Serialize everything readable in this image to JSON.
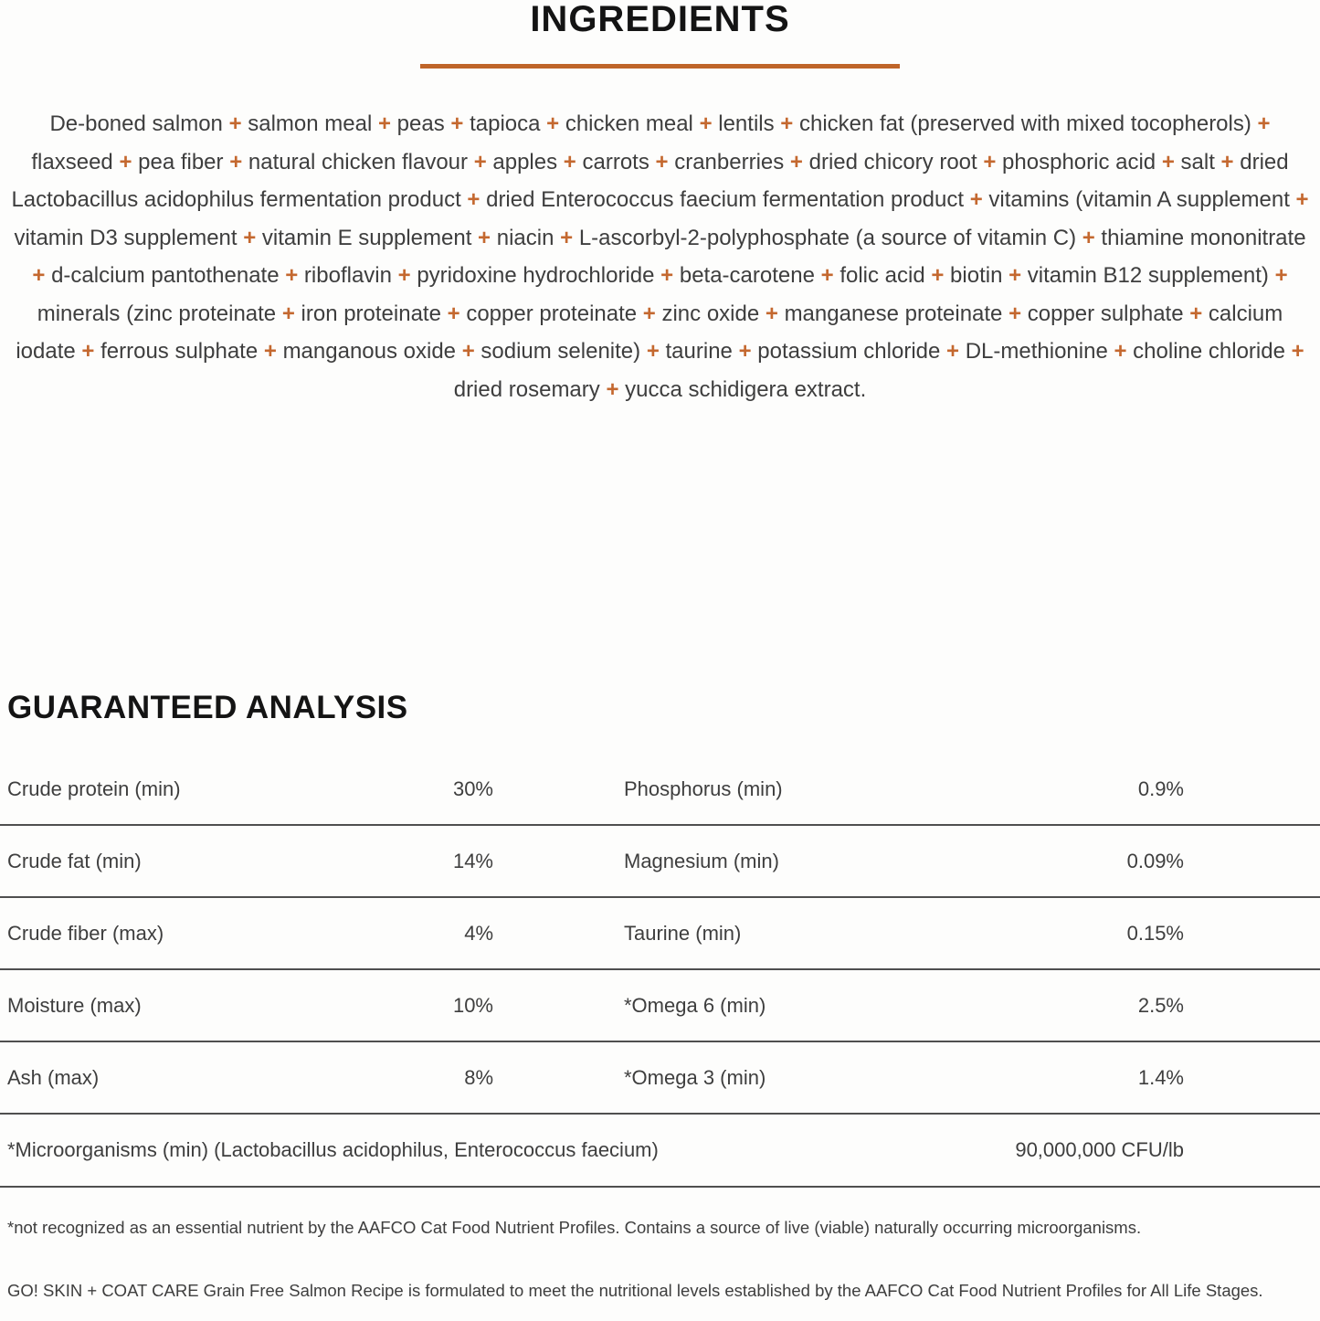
{
  "colors": {
    "accent_orange": "#BF6529",
    "heading_black": "#141414",
    "body_gray": "#3E3E3E",
    "separator_gray": "#4F4F4F"
  },
  "ingredients": {
    "title": "INGREDIENTS",
    "separator_symbol": "+",
    "items": [
      "De-boned salmon",
      "salmon meal",
      "peas",
      "tapioca",
      "chicken meal",
      "lentils",
      "chicken fat (preserved with mixed tocopherols)",
      "flaxseed",
      "pea fiber",
      "natural chicken flavour",
      "apples",
      "carrots",
      "cranberries",
      "dried chicory root",
      "phosphoric acid",
      "salt",
      "dried Lactobacillus acidophilus fermentation product",
      "dried Enterococcus faecium fermentation product",
      "vitamins (vitamin A supplement",
      "vitamin D3 supplement",
      "vitamin E supplement",
      "niacin",
      "L-ascorbyl-2-polyphosphate (a source of vitamin C)",
      "thiamine mononitrate",
      "d-calcium pantothenate",
      "riboflavin",
      "pyridoxine hydrochloride",
      "beta-carotene",
      "folic acid",
      "biotin",
      "vitamin B12 supplement)",
      "minerals (zinc proteinate",
      "iron proteinate",
      "copper proteinate",
      "zinc oxide",
      "manganese proteinate",
      "copper sulphate",
      "calcium iodate",
      "ferrous sulphate",
      "manganous oxide",
      "sodium selenite)",
      "taurine",
      "potassium chloride",
      "DL-methionine",
      "choline chloride",
      "dried rosemary",
      "yucca schidigera extract."
    ]
  },
  "analysis": {
    "title": "GUARANTEED ANALYSIS",
    "rows": [
      {
        "left_label": "Crude protein (min)",
        "left_value": "30%",
        "right_label": "Phosphorus (min)",
        "right_value": "0.9%"
      },
      {
        "left_label": "Crude fat (min)",
        "left_value": "14%",
        "right_label": "Magnesium (min)",
        "right_value": "0.09%"
      },
      {
        "left_label": "Crude fiber (max)",
        "left_value": "4%",
        "right_label": "Taurine (min)",
        "right_value": "0.15%"
      },
      {
        "left_label": "Moisture (max)",
        "left_value": "10%",
        "right_label": "*Omega 6 (min)",
        "right_value": "2.5%"
      },
      {
        "left_label": "Ash (max)",
        "left_value": "8%",
        "right_label": "*Omega 3 (min)",
        "right_value": "1.4%"
      }
    ],
    "full_row": {
      "label": "*Microorganisms (min) (Lactobacillus acidophilus, Enterococcus faecium)",
      "value": "90,000,000 CFU/lb"
    }
  },
  "footnotes": [
    "*not recognized as an essential nutrient by the AAFCO Cat Food Nutrient Profiles. Contains a source of live (viable) naturally occurring microorganisms.",
    "GO! SKIN + COAT CARE Grain Free Salmon Recipe is formulated to meet the nutritional levels established by the AAFCO Cat Food Nutrient Profiles for All Life Stages."
  ]
}
